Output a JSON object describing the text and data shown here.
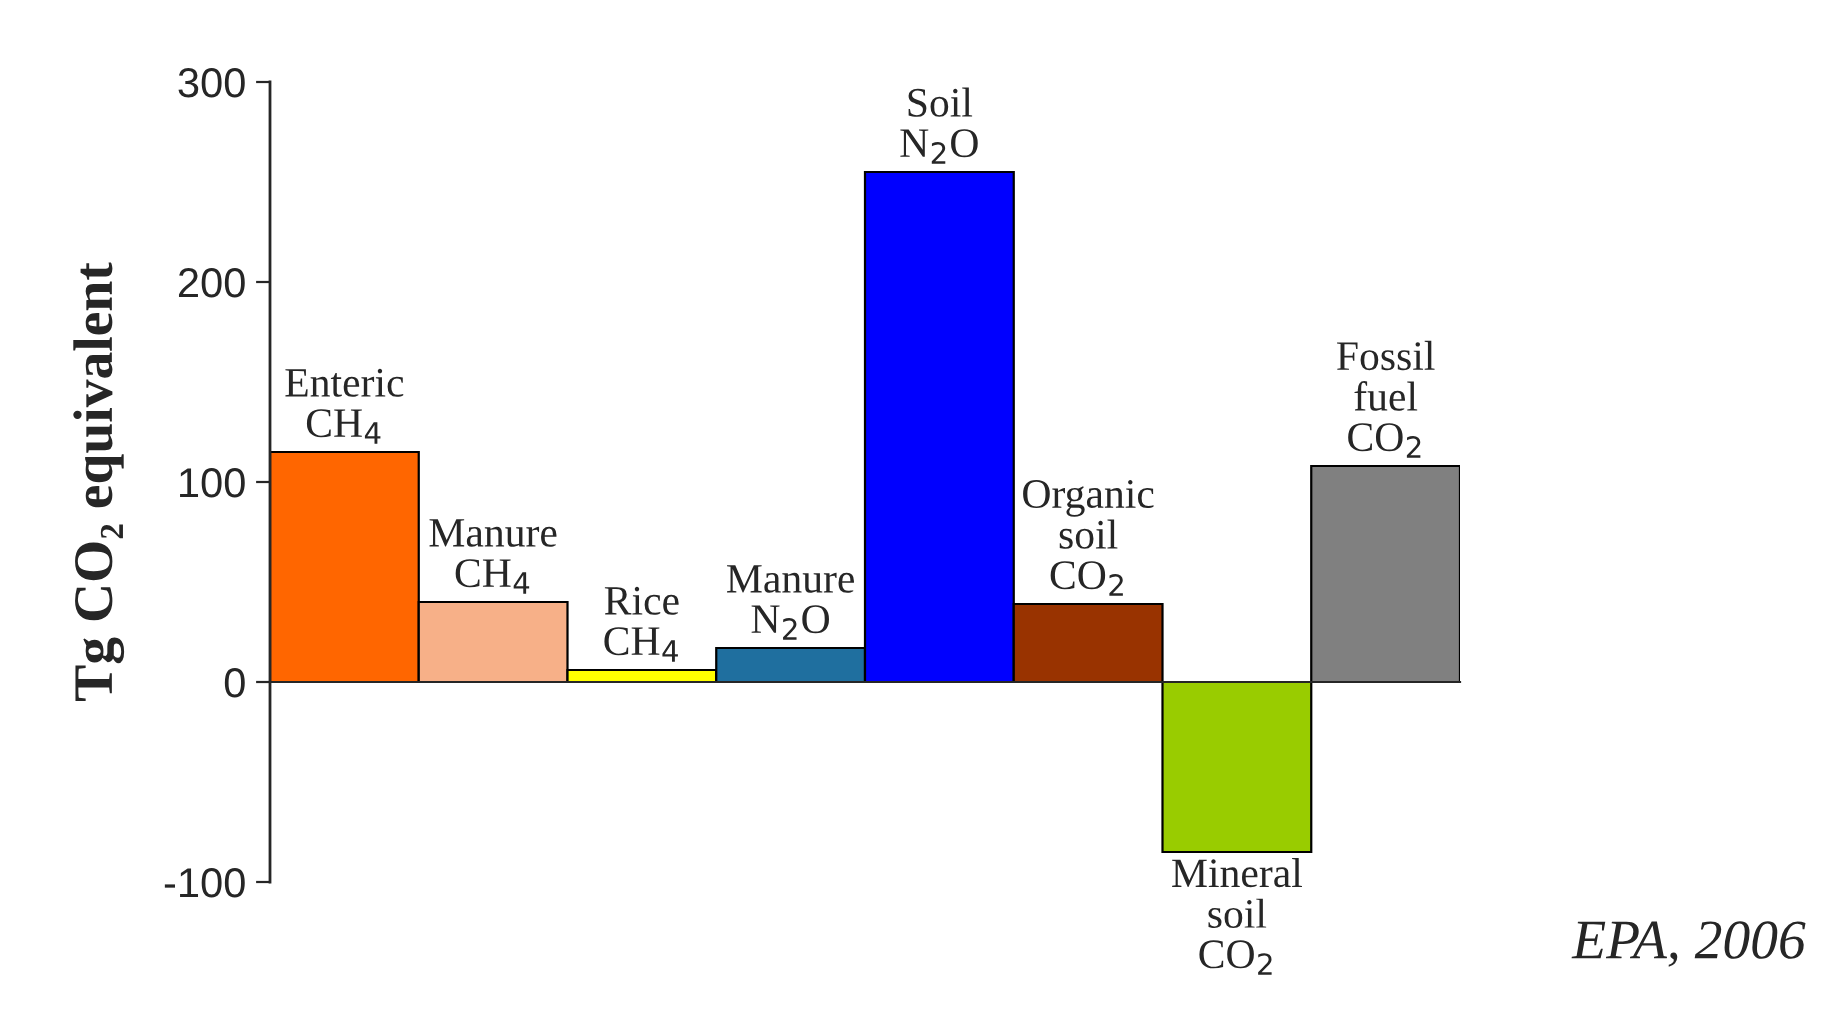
{
  "chart_data": {
    "type": "bar",
    "ylabel": "Tg CO₂ equivalent",
    "categories": [
      "Enteric\nCH$_{4}$",
      "Manure\nCH$_{4}$",
      "Rice\nCH$_{4}$",
      "Manure\nN$_{2}$O",
      "Soil\nN$_{2}$O",
      "Organic\nsoil\nCO$_{2}$",
      "Mineral\nsoil\nCO$_{2}$",
      "Fossil\nfuel\nCO$_{2}$"
    ],
    "values": [
      115,
      40,
      6,
      17,
      255,
      39,
      -85,
      108
    ],
    "colors": [
      "#ff6600",
      "#f7b088",
      "#ffff00",
      "#1f6f9f",
      "#0000ff",
      "#993300",
      "#99cc00",
      "#808080"
    ],
    "ylim": [
      -100,
      300
    ],
    "yticks": [
      -100,
      0,
      100,
      200,
      300
    ],
    "grid": false,
    "legend": false,
    "annotations": [
      "EPA, 2006"
    ]
  }
}
